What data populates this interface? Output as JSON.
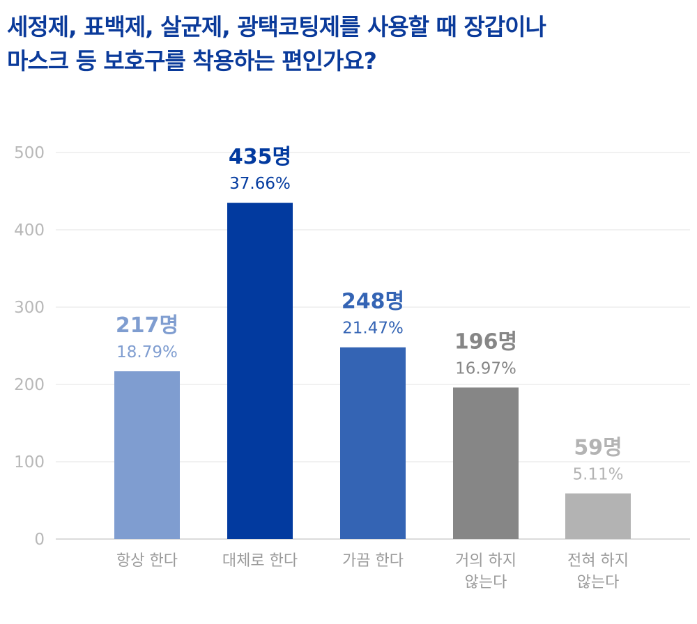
{
  "title": {
    "line1": "세정제, 표백제, 살균제, 광택코팅제를 사용할 때 장갑이나",
    "line2": "마스크 등 보호구를 착용하는 편인가요?"
  },
  "chart_data": {
    "type": "bar",
    "title": "세정제, 표백제, 살균제, 광택코팅제를 사용할 때 장갑이나 마스크 등 보호구를 착용하는 편인가요?",
    "categories": [
      [
        "항상 한다"
      ],
      [
        "대체로 한다"
      ],
      [
        "가끔 한다"
      ],
      [
        "거의 하지",
        "않는다"
      ],
      [
        "전혀 하지",
        "않는다"
      ]
    ],
    "values": [
      217,
      435,
      248,
      196,
      59
    ],
    "value_labels": [
      "217명",
      "435명",
      "248명",
      "196명",
      "59명"
    ],
    "percent_labels": [
      "18.79%",
      "37.66%",
      "21.47%",
      "16.97%",
      "5.11%"
    ],
    "colors": [
      "#7f9dd0",
      "#023a9f",
      "#3464b4",
      "#868686",
      "#b3b3b3"
    ],
    "yticks": [
      0,
      100,
      200,
      300,
      400,
      500
    ],
    "ylim": [
      0,
      500
    ],
    "grid": true
  }
}
